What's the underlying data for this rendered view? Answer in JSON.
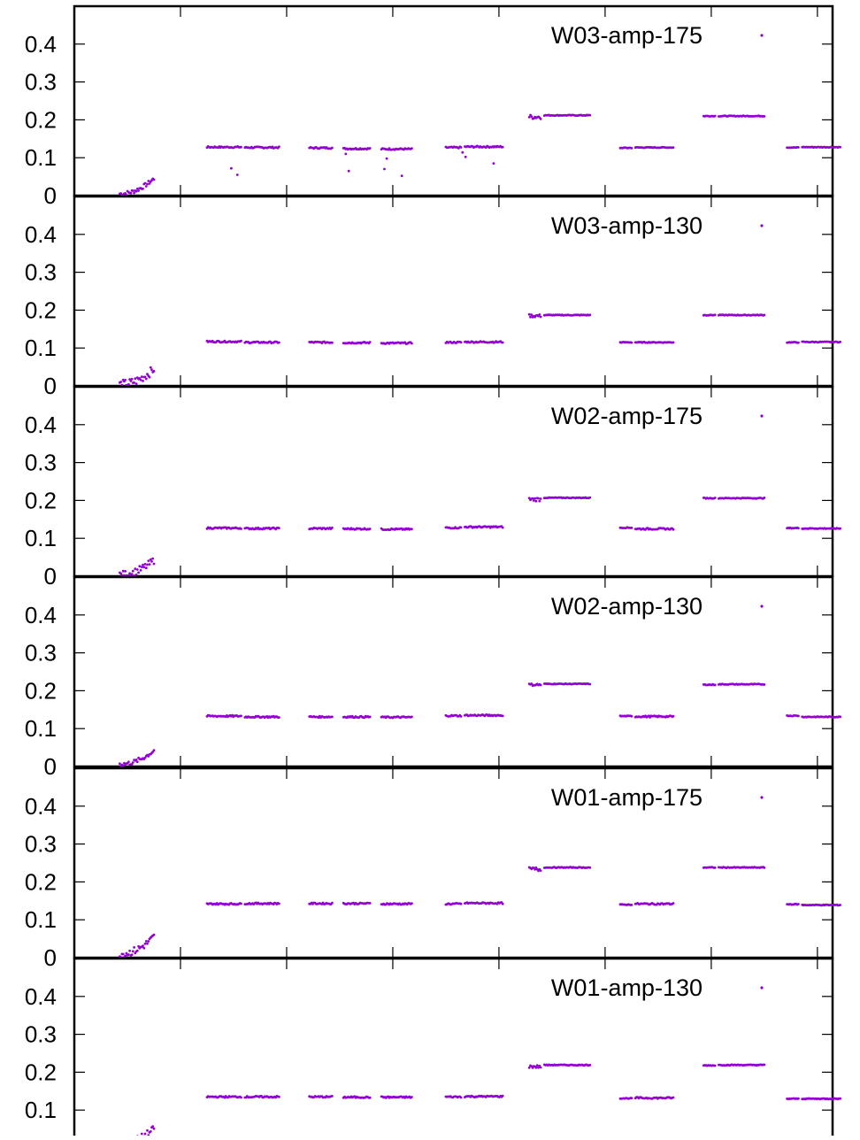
{
  "colors": {
    "series": "#9400d3",
    "axis": "#000000",
    "background": "#ffffff"
  },
  "chart_data": [
    {
      "type": "scatter",
      "legend": "W03-amp-175",
      "legend_position": "top-right",
      "ylim": [
        0,
        0.5
      ],
      "yticks": [
        "0",
        "0.1",
        "0.2",
        "0.3",
        "0.4"
      ],
      "xlim": [
        0,
        100
      ],
      "xticks": [
        14,
        28,
        42,
        56,
        70,
        84,
        98
      ],
      "grid": false,
      "segments": [
        {
          "x0": 6,
          "x1": 10.5,
          "y0": 0.005,
          "y1": 0.045,
          "noise": 0.006
        },
        {
          "x0": 17.5,
          "x1": 22,
          "y": 0.128,
          "noise": 0.002,
          "outliers": [
            [
              20.7,
              0.072
            ],
            [
              21.5,
              0.055
            ]
          ]
        },
        {
          "x0": 22.5,
          "x1": 27,
          "y": 0.127,
          "noise": 0.002
        },
        {
          "x0": 31,
          "x1": 34,
          "y": 0.126,
          "noise": 0.002
        },
        {
          "x0": 35.5,
          "x1": 39,
          "y": 0.124,
          "noise": 0.002,
          "outliers": [
            [
              35.8,
              0.11
            ],
            [
              36.2,
              0.065
            ]
          ]
        },
        {
          "x0": 40.5,
          "x1": 44.5,
          "y": 0.123,
          "noise": 0.002,
          "outliers": [
            [
              41.2,
              0.098
            ],
            [
              40.9,
              0.07
            ],
            [
              43.2,
              0.052
            ]
          ]
        },
        {
          "x0": 49,
          "x1": 51,
          "y": 0.127,
          "noise": 0.002
        },
        {
          "x0": 51.5,
          "x1": 56.5,
          "y": 0.129,
          "noise": 0.002,
          "outliers": [
            [
              51.2,
              0.114
            ],
            [
              51.6,
              0.102
            ],
            [
              55.3,
              0.085
            ]
          ]
        },
        {
          "x0": 60,
          "x1": 61.5,
          "y": 0.208,
          "noise": 0.006
        },
        {
          "x0": 62,
          "x1": 68,
          "y": 0.212,
          "noise": 0.001
        },
        {
          "x0": 72,
          "x1": 73.5,
          "y": 0.126,
          "noise": 0.001
        },
        {
          "x0": 74,
          "x1": 79,
          "y": 0.127,
          "noise": 0.001
        },
        {
          "x0": 83,
          "x1": 84.5,
          "y": 0.21,
          "noise": 0.001
        },
        {
          "x0": 85,
          "x1": 91,
          "y": 0.21,
          "noise": 0.001
        },
        {
          "x0": 94,
          "x1": 95.5,
          "y": 0.127,
          "noise": 0.001
        },
        {
          "x0": 96,
          "x1": 101,
          "y": 0.128,
          "noise": 0.001
        }
      ]
    },
    {
      "type": "scatter",
      "legend": "W03-amp-130",
      "legend_position": "top-right",
      "ylim": [
        0,
        0.5
      ],
      "yticks": [
        "0",
        "0.1",
        "0.2",
        "0.3",
        "0.4"
      ],
      "xlim": [
        0,
        100
      ],
      "xticks": [
        14,
        28,
        42,
        56,
        70,
        84,
        98
      ],
      "grid": false,
      "segments": [
        {
          "x0": 6,
          "x1": 10.5,
          "y0": 0.004,
          "y1": 0.045,
          "noise": 0.012
        },
        {
          "x0": 17.5,
          "x1": 22,
          "y": 0.117,
          "noise": 0.002
        },
        {
          "x0": 22.5,
          "x1": 27,
          "y": 0.115,
          "noise": 0.002
        },
        {
          "x0": 31,
          "x1": 34,
          "y": 0.115,
          "noise": 0.002
        },
        {
          "x0": 35.5,
          "x1": 39,
          "y": 0.114,
          "noise": 0.002
        },
        {
          "x0": 40.5,
          "x1": 44.5,
          "y": 0.113,
          "noise": 0.002
        },
        {
          "x0": 49,
          "x1": 51,
          "y": 0.115,
          "noise": 0.002
        },
        {
          "x0": 51.5,
          "x1": 56.5,
          "y": 0.116,
          "noise": 0.002
        },
        {
          "x0": 60,
          "x1": 61.5,
          "y": 0.185,
          "noise": 0.004
        },
        {
          "x0": 62,
          "x1": 68,
          "y": 0.187,
          "noise": 0.001
        },
        {
          "x0": 72,
          "x1": 73.5,
          "y": 0.115,
          "noise": 0.001
        },
        {
          "x0": 74,
          "x1": 79,
          "y": 0.115,
          "noise": 0.001
        },
        {
          "x0": 83,
          "x1": 84.5,
          "y": 0.187,
          "noise": 0.001
        },
        {
          "x0": 85,
          "x1": 91,
          "y": 0.187,
          "noise": 0.001
        },
        {
          "x0": 94,
          "x1": 95.5,
          "y": 0.115,
          "noise": 0.001
        },
        {
          "x0": 96,
          "x1": 101,
          "y": 0.116,
          "noise": 0.001
        }
      ]
    },
    {
      "type": "scatter",
      "legend": "W02-amp-175",
      "legend_position": "top-right",
      "ylim": [
        0,
        0.5
      ],
      "yticks": [
        "0",
        "0.1",
        "0.2",
        "0.3",
        "0.4"
      ],
      "xlim": [
        0,
        100
      ],
      "xticks": [
        14,
        28,
        42,
        56,
        70,
        84,
        98
      ],
      "grid": false,
      "segments": [
        {
          "x0": 6,
          "x1": 10.5,
          "y0": 0.004,
          "y1": 0.042,
          "noise": 0.01
        },
        {
          "x0": 17.5,
          "x1": 22,
          "y": 0.127,
          "noise": 0.002
        },
        {
          "x0": 22.5,
          "x1": 27,
          "y": 0.126,
          "noise": 0.002
        },
        {
          "x0": 31,
          "x1": 34,
          "y": 0.126,
          "noise": 0.002
        },
        {
          "x0": 35.5,
          "x1": 39,
          "y": 0.125,
          "noise": 0.002
        },
        {
          "x0": 40.5,
          "x1": 44.5,
          "y": 0.124,
          "noise": 0.002
        },
        {
          "x0": 49,
          "x1": 51,
          "y": 0.128,
          "noise": 0.002
        },
        {
          "x0": 51.5,
          "x1": 56.5,
          "y": 0.13,
          "noise": 0.002
        },
        {
          "x0": 60,
          "x1": 61.5,
          "y": 0.203,
          "noise": 0.005
        },
        {
          "x0": 62,
          "x1": 68,
          "y": 0.207,
          "noise": 0.001
        },
        {
          "x0": 72,
          "x1": 73.5,
          "y": 0.128,
          "noise": 0.001
        },
        {
          "x0": 74,
          "x1": 79,
          "y": 0.125,
          "noise": 0.002
        },
        {
          "x0": 83,
          "x1": 84.5,
          "y": 0.206,
          "noise": 0.001
        },
        {
          "x0": 85,
          "x1": 91,
          "y": 0.206,
          "noise": 0.001
        },
        {
          "x0": 94,
          "x1": 95.5,
          "y": 0.127,
          "noise": 0.001
        },
        {
          "x0": 96,
          "x1": 101,
          "y": 0.126,
          "noise": 0.001
        }
      ]
    },
    {
      "type": "scatter",
      "legend": "W02-amp-130",
      "legend_position": "top-right",
      "ylim": [
        0,
        0.5
      ],
      "yticks": [
        "0",
        "0.1",
        "0.2",
        "0.3",
        "0.4"
      ],
      "xlim": [
        0,
        100
      ],
      "xticks": [
        14,
        28,
        42,
        56,
        70,
        84,
        98
      ],
      "grid": false,
      "segments": [
        {
          "x0": 6,
          "x1": 10.5,
          "y0": 0.006,
          "y1": 0.042,
          "noise": 0.006
        },
        {
          "x0": 17.5,
          "x1": 22,
          "y": 0.133,
          "noise": 0.002
        },
        {
          "x0": 22.5,
          "x1": 27,
          "y": 0.131,
          "noise": 0.002
        },
        {
          "x0": 31,
          "x1": 34,
          "y": 0.131,
          "noise": 0.002
        },
        {
          "x0": 35.5,
          "x1": 39,
          "y": 0.131,
          "noise": 0.002
        },
        {
          "x0": 40.5,
          "x1": 44.5,
          "y": 0.13,
          "noise": 0.002
        },
        {
          "x0": 49,
          "x1": 51,
          "y": 0.134,
          "noise": 0.002
        },
        {
          "x0": 51.5,
          "x1": 56.5,
          "y": 0.135,
          "noise": 0.002
        },
        {
          "x0": 60,
          "x1": 61.5,
          "y": 0.216,
          "noise": 0.003
        },
        {
          "x0": 62,
          "x1": 68,
          "y": 0.218,
          "noise": 0.001
        },
        {
          "x0": 72,
          "x1": 73.5,
          "y": 0.133,
          "noise": 0.001
        },
        {
          "x0": 74,
          "x1": 79,
          "y": 0.132,
          "noise": 0.002
        },
        {
          "x0": 83,
          "x1": 84.5,
          "y": 0.216,
          "noise": 0.001
        },
        {
          "x0": 85,
          "x1": 91,
          "y": 0.217,
          "noise": 0.001
        },
        {
          "x0": 94,
          "x1": 95.5,
          "y": 0.134,
          "noise": 0.001
        },
        {
          "x0": 96,
          "x1": 101,
          "y": 0.131,
          "noise": 0.001
        }
      ]
    },
    {
      "type": "scatter",
      "legend": "W01-amp-175",
      "legend_position": "top-right",
      "ylim": [
        0,
        0.5
      ],
      "yticks": [
        "0",
        "0.1",
        "0.2",
        "0.3",
        "0.4"
      ],
      "xlim": [
        0,
        100
      ],
      "xticks": [
        14,
        28,
        42,
        56,
        70,
        84,
        98
      ],
      "grid": false,
      "segments": [
        {
          "x0": 6,
          "x1": 10.5,
          "y0": 0.01,
          "y1": 0.055,
          "noise": 0.01
        },
        {
          "x0": 17.5,
          "x1": 22,
          "y": 0.142,
          "noise": 0.002
        },
        {
          "x0": 22.5,
          "x1": 27,
          "y": 0.143,
          "noise": 0.002
        },
        {
          "x0": 31,
          "x1": 34,
          "y": 0.143,
          "noise": 0.002
        },
        {
          "x0": 35.5,
          "x1": 39,
          "y": 0.143,
          "noise": 0.002
        },
        {
          "x0": 40.5,
          "x1": 44.5,
          "y": 0.142,
          "noise": 0.002
        },
        {
          "x0": 49,
          "x1": 51,
          "y": 0.142,
          "noise": 0.002
        },
        {
          "x0": 51.5,
          "x1": 56.5,
          "y": 0.144,
          "noise": 0.002
        },
        {
          "x0": 60,
          "x1": 61.5,
          "y": 0.233,
          "noise": 0.006
        },
        {
          "x0": 62,
          "x1": 68,
          "y": 0.238,
          "noise": 0.001
        },
        {
          "x0": 72,
          "x1": 73.5,
          "y": 0.14,
          "noise": 0.001
        },
        {
          "x0": 74,
          "x1": 79,
          "y": 0.142,
          "noise": 0.002
        },
        {
          "x0": 83,
          "x1": 84.5,
          "y": 0.238,
          "noise": 0.001
        },
        {
          "x0": 85,
          "x1": 91,
          "y": 0.238,
          "noise": 0.001
        },
        {
          "x0": 94,
          "x1": 95.5,
          "y": 0.141,
          "noise": 0.001
        },
        {
          "x0": 96,
          "x1": 101,
          "y": 0.139,
          "noise": 0.001
        }
      ]
    },
    {
      "type": "scatter",
      "legend": "W01-amp-130",
      "legend_position": "top-right",
      "ylim": [
        0,
        0.5
      ],
      "yticks": [
        "0",
        "0.1",
        "0.2",
        "0.3",
        "0.4"
      ],
      "xlim": [
        0,
        100
      ],
      "xticks": [
        14,
        28,
        42,
        56,
        70,
        84,
        98
      ],
      "grid": false,
      "segments": [
        {
          "x0": 6,
          "x1": 10.5,
          "y0": 0.012,
          "y1": 0.05,
          "noise": 0.01
        },
        {
          "x0": 17.5,
          "x1": 22,
          "y": 0.135,
          "noise": 0.002
        },
        {
          "x0": 22.5,
          "x1": 27,
          "y": 0.135,
          "noise": 0.002
        },
        {
          "x0": 31,
          "x1": 34,
          "y": 0.135,
          "noise": 0.002
        },
        {
          "x0": 35.5,
          "x1": 39,
          "y": 0.134,
          "noise": 0.002
        },
        {
          "x0": 40.5,
          "x1": 44.5,
          "y": 0.134,
          "noise": 0.002
        },
        {
          "x0": 49,
          "x1": 51,
          "y": 0.135,
          "noise": 0.002
        },
        {
          "x0": 51.5,
          "x1": 56.5,
          "y": 0.136,
          "noise": 0.002
        },
        {
          "x0": 60,
          "x1": 61.5,
          "y": 0.215,
          "noise": 0.004
        },
        {
          "x0": 62,
          "x1": 68,
          "y": 0.219,
          "noise": 0.001
        },
        {
          "x0": 72,
          "x1": 73.5,
          "y": 0.131,
          "noise": 0.001
        },
        {
          "x0": 74,
          "x1": 79,
          "y": 0.132,
          "noise": 0.002
        },
        {
          "x0": 83,
          "x1": 84.5,
          "y": 0.218,
          "noise": 0.001
        },
        {
          "x0": 85,
          "x1": 91,
          "y": 0.219,
          "noise": 0.001
        },
        {
          "x0": 94,
          "x1": 95.5,
          "y": 0.13,
          "noise": 0.001
        },
        {
          "x0": 96,
          "x1": 101,
          "y": 0.13,
          "noise": 0.001
        }
      ]
    }
  ]
}
